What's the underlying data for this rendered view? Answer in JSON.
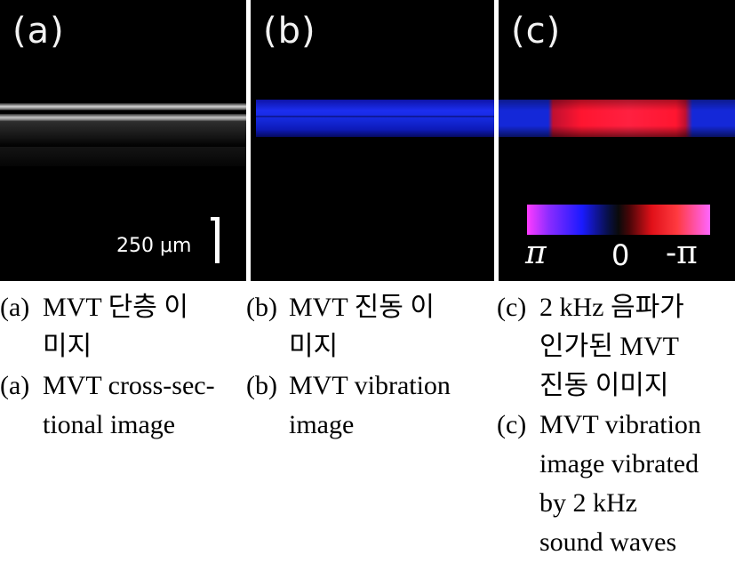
{
  "panels": {
    "a": {
      "label": "(a)",
      "scale_label": "250 μm"
    },
    "b": {
      "label": "(b)"
    },
    "c": {
      "label": "(c)",
      "colorbar": {
        "left": "π",
        "mid": "0",
        "right": "-π"
      }
    }
  },
  "colors": {
    "layer_gray": "#c8c8c8",
    "vibration_blue": "#1c2ef0",
    "vibration_red": "#ff1530",
    "background": "#000000"
  },
  "captions": {
    "a": {
      "kr_tag": "(a)",
      "kr_line1": "MVT 단층 이",
      "kr_line2": "미지",
      "en_tag": "(a)",
      "en_line1": "MVT cross-sec-",
      "en_line2": "tional image"
    },
    "b": {
      "kr_tag": "(b)",
      "kr_line1": "MVT 진동 이",
      "kr_line2": "미지",
      "en_tag": "(b)",
      "en_line1": "MVT vibration",
      "en_line2": "image"
    },
    "c": {
      "kr_tag": "(c)",
      "kr_line1": "2 kHz 음파가",
      "kr_line2": "인가된 MVT",
      "kr_line3": "진동 이미지",
      "en_tag": "(c)",
      "en_line1": "MVT vibration",
      "en_line2": "image vibrated",
      "en_line3": "by 2 kHz",
      "en_line4": "sound waves"
    }
  }
}
